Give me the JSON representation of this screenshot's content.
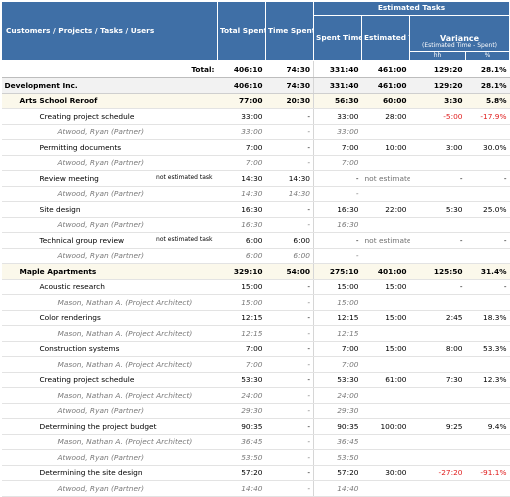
{
  "header": {
    "col1": "Customers / Projects / Tasks / Users",
    "total_spent": "Total Spent Time",
    "time_not_estimated": "Time Spent for Not Estimated Tasks",
    "estimated_tasks": "Estimated Tasks",
    "spent_time": "Spent Time",
    "estimated_time": "Estimated Time",
    "variance": "Variance",
    "variance_sub": "(Estimated Time - Spent)",
    "unit_hm": "hh",
    "unit_pct": "%"
  },
  "total": {
    "label": "Total:",
    "total": "406:10",
    "not_est": "74:30",
    "spent": "331:40",
    "est": "461:00",
    "var": "129:20",
    "pct": "28.1%"
  },
  "rows": [
    {
      "type": "customer",
      "name": "Development Inc.",
      "total": "406:10",
      "not_est": "74:30",
      "spent": "331:40",
      "est": "461:00",
      "var": "129:20",
      "pct": "28.1%"
    },
    {
      "type": "project",
      "name": "Arts School Reroof",
      "total": "77:00",
      "not_est": "20:30",
      "spent": "56:30",
      "est": "60:00",
      "var": "3:30",
      "pct": "5.8%"
    },
    {
      "type": "task",
      "name": "Creating project schedule",
      "note": "",
      "total": "33:00",
      "not_est": "-",
      "spent": "33:00",
      "est": "28:00",
      "var": "-5:00",
      "pct": "-17.9%",
      "neg": true
    },
    {
      "type": "user",
      "name": "Atwood, Ryan (Partner)",
      "total": "33:00",
      "not_est": "-",
      "spent": "33:00",
      "est": "",
      "var": "",
      "pct": ""
    },
    {
      "type": "task",
      "name": "Permitting documents",
      "note": "",
      "total": "7:00",
      "not_est": "-",
      "spent": "7:00",
      "est": "10:00",
      "var": "3:00",
      "pct": "30.0%"
    },
    {
      "type": "user",
      "name": "Atwood, Ryan (Partner)",
      "total": "7:00",
      "not_est": "-",
      "spent": "7:00",
      "est": "",
      "var": "",
      "pct": ""
    },
    {
      "type": "task",
      "name": "Review meeting",
      "note": "not estimated task",
      "total": "14:30",
      "not_est": "14:30",
      "spent": "-",
      "est": "not estimated",
      "var": "-",
      "pct": "-",
      "muted": true
    },
    {
      "type": "user",
      "name": "Atwood, Ryan (Partner)",
      "total": "14:30",
      "not_est": "14:30",
      "spent": "-",
      "est": "",
      "var": "",
      "pct": ""
    },
    {
      "type": "task",
      "name": "Site design",
      "note": "",
      "total": "16:30",
      "not_est": "-",
      "spent": "16:30",
      "est": "22:00",
      "var": "5:30",
      "pct": "25.0%"
    },
    {
      "type": "user",
      "name": "Atwood, Ryan (Partner)",
      "total": "16:30",
      "not_est": "-",
      "spent": "16:30",
      "est": "",
      "var": "",
      "pct": ""
    },
    {
      "type": "task",
      "name": "Technical group review",
      "note": "not estimated task",
      "total": "6:00",
      "not_est": "6:00",
      "spent": "-",
      "est": "not estimated",
      "var": "-",
      "pct": "-",
      "muted": true
    },
    {
      "type": "user",
      "name": "Atwood, Ryan (Partner)",
      "total": "6:00",
      "not_est": "6:00",
      "spent": "-",
      "est": "",
      "var": "",
      "pct": ""
    },
    {
      "type": "project",
      "name": "Maple Apartments",
      "total": "329:10",
      "not_est": "54:00",
      "spent": "275:10",
      "est": "401:00",
      "var": "125:50",
      "pct": "31.4%"
    },
    {
      "type": "task",
      "name": "Acoustic research",
      "note": "",
      "total": "15:00",
      "not_est": "-",
      "spent": "15:00",
      "est": "15:00",
      "var": "-",
      "pct": "-"
    },
    {
      "type": "user",
      "name": "Mason, Nathan A. (Project Architect)",
      "total": "15:00",
      "not_est": "-",
      "spent": "15:00",
      "est": "",
      "var": "",
      "pct": ""
    },
    {
      "type": "task",
      "name": "Color renderings",
      "note": "",
      "total": "12:15",
      "not_est": "-",
      "spent": "12:15",
      "est": "15:00",
      "var": "2:45",
      "pct": "18.3%"
    },
    {
      "type": "user",
      "name": "Mason, Nathan A. (Project Architect)",
      "total": "12:15",
      "not_est": "-",
      "spent": "12:15",
      "est": "",
      "var": "",
      "pct": ""
    },
    {
      "type": "task",
      "name": "Construction systems",
      "note": "",
      "total": "7:00",
      "not_est": "-",
      "spent": "7:00",
      "est": "15:00",
      "var": "8:00",
      "pct": "53.3%"
    },
    {
      "type": "user",
      "name": "Mason, Nathan A. (Project Architect)",
      "total": "7:00",
      "not_est": "-",
      "spent": "7:00",
      "est": "",
      "var": "",
      "pct": ""
    },
    {
      "type": "task",
      "name": "Creating project schedule",
      "note": "",
      "total": "53:30",
      "not_est": "-",
      "spent": "53:30",
      "est": "61:00",
      "var": "7:30",
      "pct": "12.3%"
    },
    {
      "type": "user",
      "name": "Mason, Nathan A. (Project Architect)",
      "total": "24:00",
      "not_est": "-",
      "spent": "24:00",
      "est": "",
      "var": "",
      "pct": ""
    },
    {
      "type": "user",
      "name": "Atwood, Ryan (Partner)",
      "total": "29:30",
      "not_est": "-",
      "spent": "29:30",
      "est": "",
      "var": "",
      "pct": ""
    },
    {
      "type": "task",
      "name": "Determining the project budget",
      "note": "",
      "total": "90:35",
      "not_est": "-",
      "spent": "90:35",
      "est": "100:00",
      "var": "9:25",
      "pct": "9.4%"
    },
    {
      "type": "user",
      "name": "Mason, Nathan A. (Project Architect)",
      "total": "36:45",
      "not_est": "-",
      "spent": "36:45",
      "est": "",
      "var": "",
      "pct": ""
    },
    {
      "type": "user",
      "name": "Atwood, Ryan (Partner)",
      "total": "53:50",
      "not_est": "-",
      "spent": "53:50",
      "est": "",
      "var": "",
      "pct": ""
    },
    {
      "type": "task",
      "name": "Determining the site design",
      "note": "",
      "total": "57:20",
      "not_est": "-",
      "spent": "57:20",
      "est": "30:00",
      "var": "-27:20",
      "pct": "-91.1%",
      "neg": true
    },
    {
      "type": "user",
      "name": "Atwood, Ryan (Partner)",
      "total": "14:40",
      "not_est": "-",
      "spent": "14:40",
      "est": "",
      "var": "",
      "pct": ""
    }
  ]
}
